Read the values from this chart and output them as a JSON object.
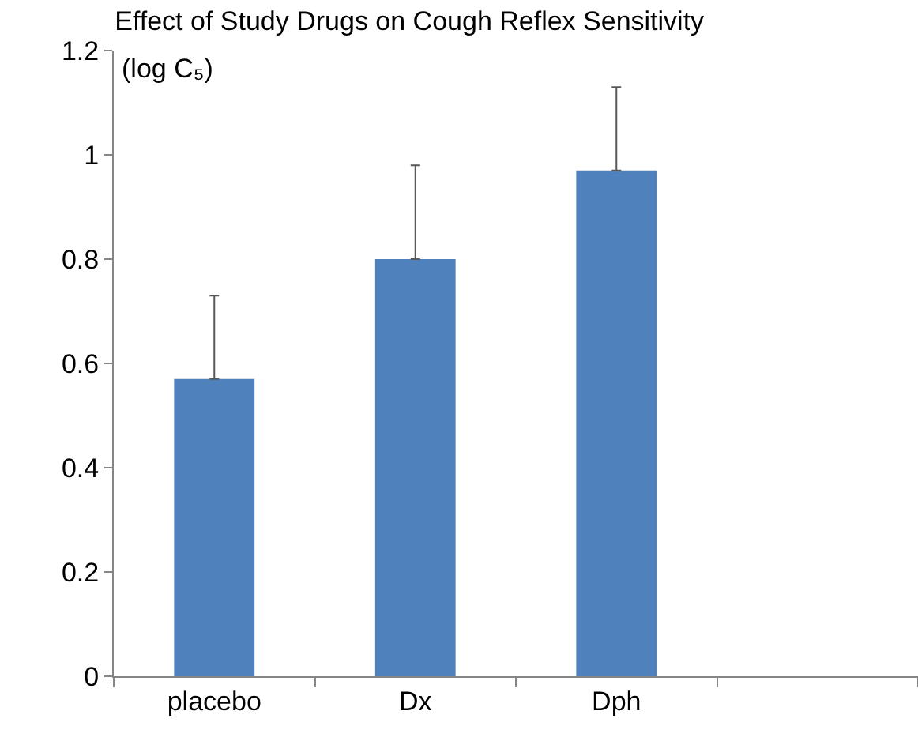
{
  "chart_data": {
    "type": "bar",
    "title": "Effect of Study Drugs on Cough Reflex Sensitivity",
    "ylabel": "(log C₅)",
    "categories": [
      "placebo",
      "Dx",
      "Dph",
      null
    ],
    "values": [
      0.57,
      0.8,
      0.97,
      null
    ],
    "errors": [
      [
        0.57,
        0.73
      ],
      [
        0.8,
        0.98
      ],
      [
        0.97,
        1.13
      ],
      null
    ],
    "color": "#4f81bd",
    "ylim": [
      0,
      1.2
    ],
    "yticks": [
      0,
      0.2,
      0.4,
      0.6,
      0.8,
      1,
      1.2
    ]
  }
}
